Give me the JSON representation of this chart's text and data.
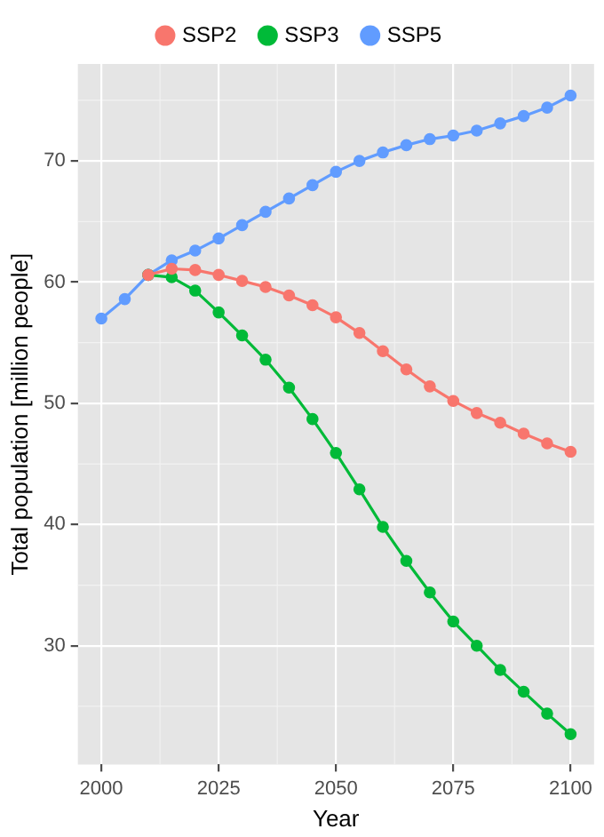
{
  "chart_data": {
    "type": "line",
    "xlabel": "Year",
    "ylabel": "Total population [million people]",
    "x": [
      2000,
      2005,
      2010,
      2015,
      2020,
      2025,
      2030,
      2035,
      2040,
      2045,
      2050,
      2055,
      2060,
      2065,
      2070,
      2075,
      2080,
      2085,
      2090,
      2095,
      2100
    ],
    "series": [
      {
        "name": "SSP2",
        "color": "#f8766d",
        "values": [
          null,
          null,
          60.6,
          61.1,
          61.0,
          60.6,
          60.1,
          59.6,
          58.9,
          58.1,
          57.1,
          55.8,
          54.3,
          52.8,
          51.4,
          50.2,
          49.2,
          48.4,
          47.5,
          46.7,
          46.0
        ]
      },
      {
        "name": "SSP3",
        "color": "#00ba38",
        "values": [
          null,
          null,
          60.6,
          60.4,
          59.3,
          57.5,
          55.6,
          53.6,
          51.3,
          48.7,
          45.9,
          42.9,
          39.8,
          37.0,
          34.4,
          32.0,
          30.0,
          28.0,
          26.2,
          24.4,
          22.7
        ]
      },
      {
        "name": "SSP5",
        "color": "#619cff",
        "values": [
          57.0,
          58.6,
          60.6,
          61.8,
          62.6,
          63.6,
          64.7,
          65.8,
          66.9,
          68.0,
          69.1,
          70.0,
          70.7,
          71.3,
          71.8,
          72.1,
          72.5,
          73.1,
          73.7,
          74.4,
          75.4
        ]
      }
    ],
    "xlim": [
      1995,
      2105
    ],
    "xticks": [
      2000,
      2025,
      2050,
      2075,
      2100
    ],
    "ylim": [
      20.2,
      78
    ],
    "yticks": [
      30,
      40,
      50,
      60,
      70
    ],
    "grid": true,
    "legend": "top",
    "marker": "circle",
    "line_style": "solid"
  }
}
